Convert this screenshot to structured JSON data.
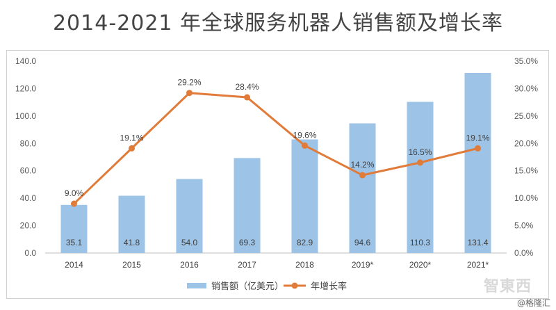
{
  "chart_data": {
    "type": "bar+line",
    "title": "2014-2021 年全球服务机器人销售额及增长率",
    "categories": [
      "2014",
      "2015",
      "2016",
      "2017",
      "2018",
      "2019*",
      "2020*",
      "2021*"
    ],
    "series": [
      {
        "name": "销售额（亿美元）",
        "type": "bar",
        "axis": "left",
        "color": "#9dc3e6",
        "values": [
          35.1,
          41.8,
          54.0,
          69.3,
          82.9,
          94.6,
          110.3,
          131.4
        ],
        "labels": [
          "35.1",
          "41.8",
          "54.0",
          "69.3",
          "82.9",
          "94.6",
          "110.3",
          "131.4"
        ]
      },
      {
        "name": "年增长率",
        "type": "line",
        "axis": "right",
        "color": "#e07b39",
        "values": [
          9.0,
          19.1,
          29.2,
          28.4,
          19.6,
          14.2,
          16.5,
          19.1
        ],
        "labels": [
          "9.0%",
          "19.1%",
          "29.2%",
          "28.4%",
          "19.6%",
          "14.2%",
          "16.5%",
          "19.1%"
        ]
      }
    ],
    "y_left": {
      "min": 0,
      "max": 140,
      "ticks": [
        "0.0",
        "20.0",
        "40.0",
        "60.0",
        "80.0",
        "100.0",
        "120.0",
        "140.0"
      ]
    },
    "y_right": {
      "min": 0,
      "max": 35,
      "ticks": [
        "0.0%",
        "5.0%",
        "10.0%",
        "15.0%",
        "20.0%",
        "25.0%",
        "30.0%",
        "35.0%"
      ]
    },
    "legend_position": "bottom",
    "grid": false
  },
  "watermark": {
    "logo": "智東西",
    "text": "@格隆汇"
  }
}
